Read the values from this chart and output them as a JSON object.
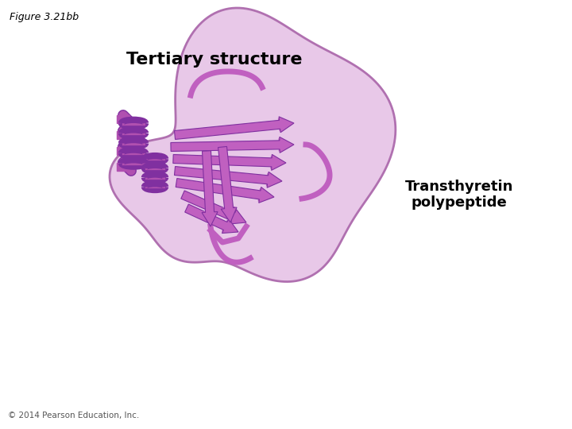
{
  "figure_label": "Figure 3.21bb",
  "title": "Tertiary structure",
  "label_transthyretin": "Transthyretin\npolypeptide",
  "copyright": "© 2014 Pearson Education, Inc.",
  "background_color": "#ffffff",
  "title_fontsize": 16,
  "title_fontweight": "bold",
  "label_fontsize": 13,
  "label_fontweight": "bold",
  "fig_label_fontsize": 9,
  "copyright_fontsize": 7.5,
  "blob_fill": "#e8c8e8",
  "blob_edge": "#b070b0",
  "ribbon_fill": "#c060c0",
  "ribbon_edge": "#8030a0",
  "arrow_color": "#9040a0",
  "helix_color": "#b050b0"
}
